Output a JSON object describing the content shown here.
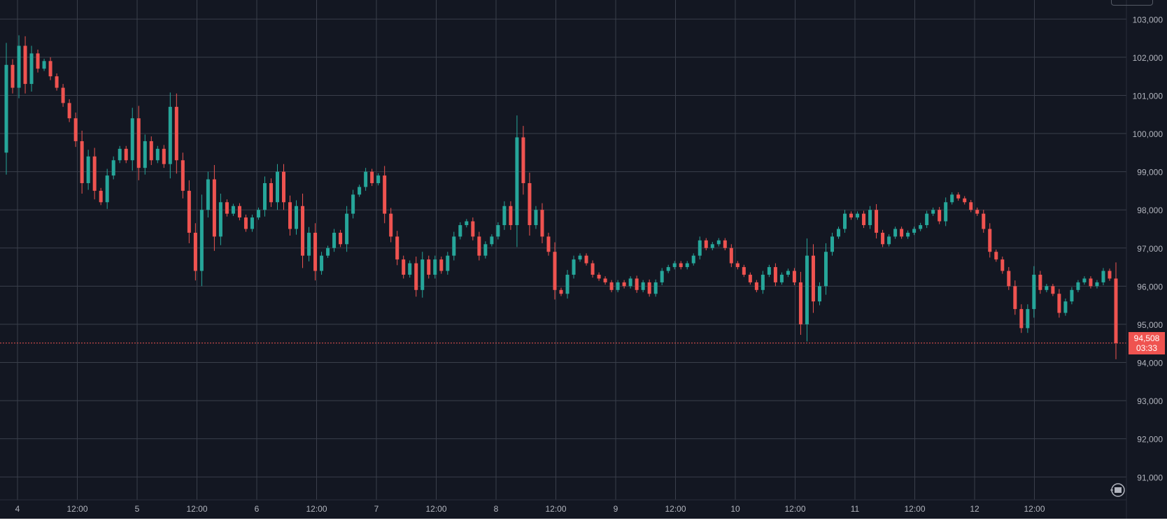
{
  "chart_data": {
    "type": "candlestick",
    "title": "",
    "x_ticks": [
      "4",
      "12:00",
      "5",
      "12:00",
      "6",
      "12:00",
      "7",
      "12:00",
      "8",
      "12:00",
      "9",
      "12:00",
      "10",
      "12:00",
      "11",
      "12:00",
      "12",
      "12:00"
    ],
    "y_ticks": [
      "103,000",
      "102,000",
      "101,000",
      "100,000",
      "99,000",
      "98,000",
      "97,000",
      "96,000",
      "95,000",
      "94,000",
      "93,000",
      "92,000",
      "91,000"
    ],
    "ylim": [
      90400,
      103500
    ],
    "grid": true,
    "colors": {
      "up": "#26a69a",
      "down": "#ef5350",
      "background": "#131722",
      "grid": "#3a3f4b",
      "axis_text": "#b2b5be"
    },
    "path_points": [
      [
        "4",
        99500
      ],
      [
        "4",
        101800
      ],
      [
        "4",
        101200
      ],
      [
        "4",
        102300
      ],
      [
        "4",
        101300
      ],
      [
        "4",
        102100
      ],
      [
        "4",
        101700
      ],
      [
        "4",
        101900
      ],
      [
        "4",
        101500
      ],
      [
        "4",
        101200
      ],
      [
        "4",
        100800
      ],
      [
        "4",
        100400
      ],
      [
        "4",
        99800
      ],
      [
        "4",
        98700
      ],
      [
        "4",
        99400
      ],
      [
        "4",
        98500
      ],
      [
        "12:00",
        98200
      ],
      [
        "12:00",
        98900
      ],
      [
        "12:00",
        99300
      ],
      [
        "12:00",
        99600
      ],
      [
        "12:00",
        99300
      ],
      [
        "12:00",
        100400
      ],
      [
        "12:00",
        99100
      ],
      [
        "12:00",
        99800
      ],
      [
        "12:00",
        99300
      ],
      [
        "12:00",
        99600
      ],
      [
        "12:00",
        99200
      ],
      [
        "12:00",
        100700
      ],
      [
        "5",
        99300
      ],
      [
        "5",
        98500
      ],
      [
        "5",
        97400
      ],
      [
        "5",
        96400
      ],
      [
        "5",
        98000
      ],
      [
        "5",
        98800
      ],
      [
        "5",
        97300
      ],
      [
        "5",
        98200
      ],
      [
        "5",
        97900
      ],
      [
        "5",
        98100
      ],
      [
        "5",
        97800
      ],
      [
        "5",
        97500
      ],
      [
        "12:00",
        97800
      ],
      [
        "12:00",
        98000
      ],
      [
        "12:00",
        98700
      ],
      [
        "12:00",
        98200
      ],
      [
        "12:00",
        99000
      ],
      [
        "12:00",
        98200
      ],
      [
        "12:00",
        97500
      ],
      [
        "12:00",
        98100
      ],
      [
        "12:00",
        96800
      ],
      [
        "12:00",
        97400
      ],
      [
        "6",
        96400
      ],
      [
        "6",
        96800
      ],
      [
        "6",
        97000
      ],
      [
        "6",
        97400
      ],
      [
        "6",
        97100
      ],
      [
        "6",
        97900
      ],
      [
        "6",
        98400
      ],
      [
        "6",
        98600
      ],
      [
        "12:00",
        99000
      ],
      [
        "12:00",
        98700
      ],
      [
        "12:00",
        98900
      ],
      [
        "12:00",
        97900
      ],
      [
        "12:00",
        97300
      ],
      [
        "12:00",
        96700
      ],
      [
        "12:00",
        96300
      ],
      [
        "12:00",
        96600
      ],
      [
        "12:00",
        95900
      ],
      [
        "12:00",
        96700
      ],
      [
        "12:00",
        96300
      ],
      [
        "12:00",
        96700
      ],
      [
        "12:00",
        96400
      ],
      [
        "7",
        96800
      ],
      [
        "7",
        97300
      ],
      [
        "7",
        97600
      ],
      [
        "7",
        97700
      ],
      [
        "7",
        97300
      ],
      [
        "7",
        96800
      ],
      [
        "7",
        97100
      ],
      [
        "7",
        97300
      ],
      [
        "12:00",
        97600
      ],
      [
        "12:00",
        98100
      ],
      [
        "12:00",
        97600
      ],
      [
        "12:00",
        99900
      ],
      [
        "12:00",
        98700
      ],
      [
        "12:00",
        97600
      ],
      [
        "12:00",
        98000
      ],
      [
        "12:00",
        97300
      ],
      [
        "12:00",
        96900
      ],
      [
        "12:00",
        95900
      ],
      [
        "8",
        95800
      ],
      [
        "8",
        96300
      ],
      [
        "8",
        96700
      ],
      [
        "8",
        96800
      ],
      [
        "8",
        96600
      ],
      [
        "8",
        96300
      ],
      [
        "8",
        96200
      ],
      [
        "8",
        96100
      ],
      [
        "12:00",
        95900
      ],
      [
        "12:00",
        96100
      ],
      [
        "12:00",
        96000
      ],
      [
        "12:00",
        96200
      ],
      [
        "12:00",
        95900
      ],
      [
        "12:00",
        96100
      ],
      [
        "12:00",
        95800
      ],
      [
        "12:00",
        96100
      ],
      [
        "12:00",
        96400
      ],
      [
        "12:00",
        96500
      ],
      [
        "12:00",
        96600
      ],
      [
        "9",
        96500
      ],
      [
        "9",
        96600
      ],
      [
        "9",
        96800
      ],
      [
        "9",
        97200
      ],
      [
        "9",
        97000
      ],
      [
        "9",
        97100
      ],
      [
        "9",
        97200
      ],
      [
        "9",
        97000
      ],
      [
        "12:00",
        96600
      ],
      [
        "12:00",
        96500
      ],
      [
        "12:00",
        96300
      ],
      [
        "12:00",
        96100
      ],
      [
        "12:00",
        95900
      ],
      [
        "12:00",
        96300
      ],
      [
        "12:00",
        96500
      ],
      [
        "12:00",
        96100
      ],
      [
        "12:00",
        96300
      ],
      [
        "12:00",
        96400
      ],
      [
        "12:00",
        96100
      ],
      [
        "10",
        95000
      ],
      [
        "10",
        96800
      ],
      [
        "10",
        95600
      ],
      [
        "10",
        96000
      ],
      [
        "10",
        96900
      ],
      [
        "10",
        97300
      ],
      [
        "10",
        97500
      ],
      [
        "10",
        97900
      ],
      [
        "12:00",
        97800
      ],
      [
        "12:00",
        97900
      ],
      [
        "12:00",
        97600
      ],
      [
        "12:00",
        98000
      ],
      [
        "12:00",
        97400
      ],
      [
        "12:00",
        97100
      ],
      [
        "12:00",
        97300
      ],
      [
        "12:00",
        97500
      ],
      [
        "12:00",
        97300
      ],
      [
        "12:00",
        97400
      ],
      [
        "11",
        97500
      ],
      [
        "11",
        97600
      ],
      [
        "11",
        97900
      ],
      [
        "11",
        98000
      ],
      [
        "11",
        97700
      ],
      [
        "11",
        98200
      ],
      [
        "11",
        98400
      ],
      [
        "11",
        98300
      ],
      [
        "12:00",
        98200
      ],
      [
        "12:00",
        98000
      ],
      [
        "12:00",
        97900
      ],
      [
        "12:00",
        97500
      ],
      [
        "12:00",
        96900
      ],
      [
        "12:00",
        96700
      ],
      [
        "12:00",
        96400
      ],
      [
        "12:00",
        96000
      ],
      [
        "12:00",
        95400
      ],
      [
        "12",
        94900
      ],
      [
        "12",
        95400
      ],
      [
        "12",
        96300
      ],
      [
        "12",
        95900
      ],
      [
        "12",
        96000
      ],
      [
        "12",
        95800
      ],
      [
        "12",
        95300
      ],
      [
        "12",
        95600
      ],
      [
        "12:00",
        95900
      ],
      [
        "12:00",
        96100
      ],
      [
        "12:00",
        96200
      ],
      [
        "12:00",
        96000
      ],
      [
        "12:00",
        96100
      ],
      [
        "12:00",
        96400
      ],
      [
        "12:00",
        96200
      ],
      [
        "12:00",
        94508
      ]
    ],
    "last_price": {
      "value": 94508,
      "label": "94,508",
      "countdown": "03:33",
      "color": "#ef5350"
    }
  },
  "icons": {
    "timezone_button": "time-settings-icon",
    "goto_realtime": "scroll-to-realtime-icon"
  }
}
